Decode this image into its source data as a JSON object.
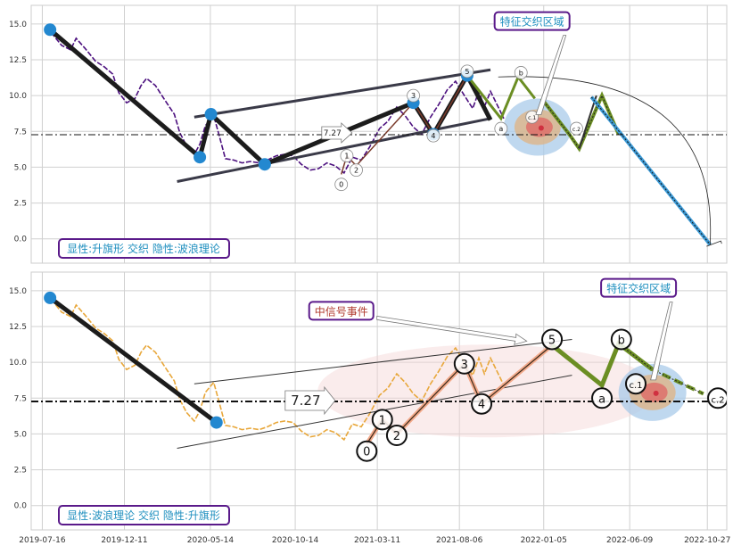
{
  "chart_data": [
    {
      "type": "line",
      "panel": "top",
      "yticks": [
        0.0,
        2.5,
        5.0,
        7.5,
        10.0,
        12.5,
        15.0
      ],
      "ylim": [
        -1.7,
        16.3
      ],
      "xlim": [
        "2019-06-26",
        "2022-12-01"
      ],
      "grid": true,
      "price_color": "#4b0f7e",
      "price_points": [
        [
          "2019-08-01",
          14.4
        ],
        [
          "2019-08-20",
          13.5
        ],
        [
          "2019-09-05",
          13.2
        ],
        [
          "2019-09-15",
          14.0
        ],
        [
          "2019-10-01",
          13.3
        ],
        [
          "2019-10-20",
          12.4
        ],
        [
          "2019-11-05",
          12.0
        ],
        [
          "2019-11-20",
          11.5
        ],
        [
          "2019-12-01",
          10.2
        ],
        [
          "2019-12-15",
          9.5
        ],
        [
          "2019-12-30",
          9.8
        ],
        [
          "2020-01-10",
          10.7
        ],
        [
          "2020-01-20",
          11.2
        ],
        [
          "2020-02-05",
          10.7
        ],
        [
          "2020-02-20",
          9.8
        ],
        [
          "2020-03-10",
          8.7
        ],
        [
          "2020-03-20",
          7.4
        ],
        [
          "2020-04-01",
          6.5
        ],
        [
          "2020-04-15",
          5.9
        ],
        [
          "2020-04-25",
          6.6
        ],
        [
          "2020-05-05",
          7.9
        ],
        [
          "2020-05-20",
          8.6
        ],
        [
          "2020-05-30",
          7.2
        ],
        [
          "2020-06-10",
          5.6
        ],
        [
          "2020-06-25",
          5.5
        ],
        [
          "2020-07-10",
          5.3
        ],
        [
          "2020-07-25",
          5.4
        ],
        [
          "2020-08-10",
          5.3
        ],
        [
          "2020-08-25",
          5.5
        ],
        [
          "2020-09-10",
          5.8
        ],
        [
          "2020-09-25",
          5.9
        ],
        [
          "2020-10-10",
          5.8
        ],
        [
          "2020-10-25",
          5.2
        ],
        [
          "2020-11-10",
          4.8
        ],
        [
          "2020-11-25",
          4.9
        ],
        [
          "2020-12-10",
          5.3
        ],
        [
          "2020-12-25",
          5.1
        ],
        [
          "2021-01-10",
          4.6
        ],
        [
          "2021-01-25",
          5.7
        ],
        [
          "2021-02-10",
          5.5
        ],
        [
          "2021-02-25",
          6.4
        ],
        [
          "2021-03-15",
          7.7
        ],
        [
          "2021-03-30",
          8.2
        ],
        [
          "2021-04-15",
          9.2
        ],
        [
          "2021-04-30",
          8.6
        ],
        [
          "2021-05-15",
          7.8
        ],
        [
          "2021-05-30",
          7.3
        ],
        [
          "2021-06-15",
          8.5
        ],
        [
          "2021-06-30",
          9.4
        ],
        [
          "2021-07-15",
          10.4
        ],
        [
          "2021-07-30",
          11.0
        ],
        [
          "2021-08-15",
          10.0
        ],
        [
          "2021-08-30",
          9.1
        ],
        [
          "2021-09-10",
          10.3
        ],
        [
          "2021-09-20",
          9.2
        ],
        [
          "2021-10-01",
          10.3
        ],
        [
          "2021-10-15",
          9.2
        ],
        [
          "2021-10-25",
          8.4
        ]
      ],
      "channel": {
        "upper": [
          [
            "2020-04-15",
            8.5
          ],
          [
            "2021-10-01",
            11.8
          ]
        ],
        "lower": [
          [
            "2020-03-15",
            4.0
          ],
          [
            "2021-10-01",
            8.4
          ]
        ]
      },
      "primary_waves": [
        [
          "2019-07-30",
          14.6
        ],
        [
          "2020-04-25",
          5.7
        ],
        [
          "2020-05-15",
          8.7
        ],
        [
          "2020-08-20",
          5.2
        ],
        [
          "2021-05-15",
          9.5
        ],
        [
          "2021-06-20",
          7.3
        ],
        [
          "2021-08-20",
          11.4
        ],
        [
          "2021-09-15",
          9.5
        ],
        [
          "2021-10-01",
          8.3
        ]
      ],
      "primary_markers": [
        [
          "2019-07-30",
          14.6
        ],
        [
          "2020-04-25",
          5.7
        ],
        [
          "2020-05-15",
          8.7
        ],
        [
          "2020-08-20",
          5.2
        ],
        [
          "2021-05-15",
          9.5
        ],
        [
          "2021-06-20",
          7.3
        ],
        [
          "2021-08-20",
          11.4
        ]
      ],
      "subwaves": [
        [
          "2021-01-05",
          4.5
        ],
        [
          "2021-01-15",
          5.8
        ],
        [
          "2021-02-01",
          5.1
        ],
        [
          "2021-05-15",
          9.5
        ],
        [
          "2021-06-20",
          7.3
        ],
        [
          "2021-08-20",
          11.4
        ]
      ],
      "wave_labels": [
        {
          "t": "0",
          "x": "2021-01-05",
          "y": 3.8
        },
        {
          "t": "1",
          "x": "2021-01-15",
          "y": 5.8
        },
        {
          "t": "2",
          "x": "2021-02-01",
          "y": 4.8
        },
        {
          "t": "3",
          "x": "2021-05-15",
          "y": 10.0
        },
        {
          "t": "4",
          "x": "2021-06-20",
          "y": 7.2
        },
        {
          "t": "5",
          "x": "2021-08-20",
          "y": 11.7
        },
        {
          "t": "a",
          "x": "2021-10-20",
          "y": 7.7
        },
        {
          "t": "b",
          "x": "2021-11-25",
          "y": 11.6
        },
        {
          "t": "c.1",
          "x": "2021-12-15",
          "y": 8.5
        },
        {
          "t": "c.2",
          "x": "2022-03-05",
          "y": 7.7
        }
      ],
      "abc_path": [
        [
          "2021-08-20",
          11.4
        ],
        [
          "2021-10-20",
          8.4
        ],
        [
          "2021-11-20",
          11.3
        ],
        [
          "2021-12-20",
          9.8
        ]
      ],
      "forecast_green": [
        [
          "2022-01-01",
          9.8
        ],
        [
          "2022-02-20",
          7.3
        ],
        [
          "2022-03-10",
          6.3
        ],
        [
          "2022-04-20",
          10.0
        ],
        [
          "2022-05-20",
          7.3
        ]
      ],
      "forecast_blue": [
        [
          "2022-04-01",
          9.9
        ],
        [
          "2022-11-01",
          -0.4
        ]
      ],
      "forecast_dark": [
        [
          "2022-03-10",
          6.3
        ],
        [
          "2022-04-10",
          10.0
        ]
      ],
      "price_line": {
        "value": 7.27,
        "label": "7.27",
        "label_x": "2021-01-10"
      },
      "feature_zone": {
        "center": [
          "2021-12-25",
          7.8
        ],
        "label": "特征交织区域",
        "label_pos": [
          "2021-12-15",
          15.2
        ]
      },
      "arc_end": [
        "2022-11-01",
        -0.4
      ],
      "legend": "显性:升旗形 交织 隐性:波浪理论",
      "xticks": []
    },
    {
      "type": "line",
      "panel": "bottom",
      "yticks": [
        0.0,
        2.5,
        5.0,
        7.5,
        10.0,
        12.5,
        15.0
      ],
      "ylim": [
        -1.7,
        16.3
      ],
      "xlim": [
        "2019-06-26",
        "2022-12-01"
      ],
      "grid": true,
      "price_color": "#e8a73a",
      "xticks": [
        "2019-07-16",
        "2019-12-11",
        "2020-05-14",
        "2020-10-14",
        "2021-03-11",
        "2021-08-06",
        "2022-01-05",
        "2022-06-09",
        "2022-10-27"
      ],
      "price_points": [
        [
          "2019-08-01",
          14.4
        ],
        [
          "2019-08-20",
          13.5
        ],
        [
          "2019-09-05",
          13.2
        ],
        [
          "2019-09-15",
          14.0
        ],
        [
          "2019-10-01",
          13.3
        ],
        [
          "2019-10-20",
          12.4
        ],
        [
          "2019-11-05",
          12.0
        ],
        [
          "2019-11-20",
          11.5
        ],
        [
          "2019-12-01",
          10.2
        ],
        [
          "2019-12-15",
          9.5
        ],
        [
          "2019-12-30",
          9.8
        ],
        [
          "2020-01-10",
          10.7
        ],
        [
          "2020-01-20",
          11.2
        ],
        [
          "2020-02-05",
          10.7
        ],
        [
          "2020-02-20",
          9.8
        ],
        [
          "2020-03-10",
          8.7
        ],
        [
          "2020-03-20",
          7.4
        ],
        [
          "2020-04-01",
          6.5
        ],
        [
          "2020-04-15",
          5.9
        ],
        [
          "2020-04-25",
          6.6
        ],
        [
          "2020-05-05",
          7.9
        ],
        [
          "2020-05-20",
          8.6
        ],
        [
          "2020-05-30",
          7.2
        ],
        [
          "2020-06-10",
          5.6
        ],
        [
          "2020-06-25",
          5.5
        ],
        [
          "2020-07-10",
          5.3
        ],
        [
          "2020-07-25",
          5.4
        ],
        [
          "2020-08-10",
          5.3
        ],
        [
          "2020-08-25",
          5.5
        ],
        [
          "2020-09-10",
          5.8
        ],
        [
          "2020-09-25",
          5.9
        ],
        [
          "2020-10-10",
          5.8
        ],
        [
          "2020-10-25",
          5.2
        ],
        [
          "2020-11-10",
          4.8
        ],
        [
          "2020-11-25",
          4.9
        ],
        [
          "2020-12-10",
          5.3
        ],
        [
          "2020-12-25",
          5.1
        ],
        [
          "2021-01-10",
          4.6
        ],
        [
          "2021-01-25",
          5.7
        ],
        [
          "2021-02-10",
          5.5
        ],
        [
          "2021-02-25",
          6.4
        ],
        [
          "2021-03-15",
          7.7
        ],
        [
          "2021-03-30",
          8.2
        ],
        [
          "2021-04-15",
          9.2
        ],
        [
          "2021-04-30",
          8.6
        ],
        [
          "2021-05-15",
          7.8
        ],
        [
          "2021-05-30",
          7.3
        ],
        [
          "2021-06-15",
          8.5
        ],
        [
          "2021-06-30",
          9.4
        ],
        [
          "2021-07-15",
          10.4
        ],
        [
          "2021-07-30",
          11.0
        ],
        [
          "2021-08-15",
          10.0
        ],
        [
          "2021-08-30",
          9.1
        ],
        [
          "2021-09-10",
          10.3
        ],
        [
          "2021-09-20",
          9.2
        ],
        [
          "2021-10-01",
          10.3
        ],
        [
          "2021-10-15",
          9.2
        ],
        [
          "2021-10-25",
          8.4
        ]
      ],
      "channel": {
        "upper": [
          [
            "2020-04-15",
            8.5
          ],
          [
            "2022-02-25",
            11.6
          ]
        ],
        "lower": [
          [
            "2020-03-15",
            4.0
          ],
          [
            "2022-02-25",
            9.1
          ]
        ]
      },
      "primary_waves": [
        [
          "2019-07-30",
          14.5
        ],
        [
          "2020-05-25",
          5.8
        ]
      ],
      "primary_markers": [
        [
          "2019-07-30",
          14.5
        ],
        [
          "2020-05-25",
          5.8
        ]
      ],
      "subwaves": [
        [
          "2021-02-20",
          4.3
        ],
        [
          "2021-03-20",
          6.0
        ],
        [
          "2021-04-15",
          5.0
        ],
        [
          "2021-08-15",
          9.9
        ],
        [
          "2021-09-15",
          7.1
        ],
        [
          "2022-01-20",
          11.2
        ]
      ],
      "wave_labels": [
        {
          "t": "0",
          "x": "2021-02-20",
          "y": 3.8
        },
        {
          "t": "1",
          "x": "2021-03-20",
          "y": 6.0
        },
        {
          "t": "2",
          "x": "2021-04-15",
          "y": 4.9
        },
        {
          "t": "3",
          "x": "2021-08-15",
          "y": 9.9
        },
        {
          "t": "4",
          "x": "2021-09-15",
          "y": 7.1
        },
        {
          "t": "5",
          "x": "2022-01-20",
          "y": 11.6
        },
        {
          "t": "a",
          "x": "2022-04-20",
          "y": 7.5
        },
        {
          "t": "b",
          "x": "2022-05-25",
          "y": 11.6
        },
        {
          "t": "c.1",
          "x": "2022-06-20",
          "y": 8.5
        },
        {
          "t": "c.2",
          "x": "2022-11-15",
          "y": 7.5
        }
      ],
      "abc_path": [
        [
          "2022-01-20",
          11.2
        ],
        [
          "2022-04-20",
          8.4
        ],
        [
          "2022-05-20",
          11.3
        ],
        [
          "2022-07-20",
          9.5
        ]
      ],
      "forecast_green": [
        [
          "2022-05-20",
          11.3
        ],
        [
          "2022-07-20",
          9.5
        ],
        [
          "2022-10-20",
          7.8
        ]
      ],
      "price_line": {
        "value": 7.27,
        "label": "7.27",
        "label_x": "2021-01-10"
      },
      "feature_zone": {
        "center": [
          "2022-07-20",
          7.9
        ],
        "label": "特征交织区域",
        "label_pos": [
          "2022-06-25",
          15.2
        ]
      },
      "signal_zone": {
        "center": [
          "2021-09-25",
          8.0
        ],
        "label": "中信号事件",
        "label_pos": [
          "2021-01-05",
          13.6
        ]
      },
      "legend": "显性:波浪理论 交织 隐性:升旗形"
    }
  ]
}
